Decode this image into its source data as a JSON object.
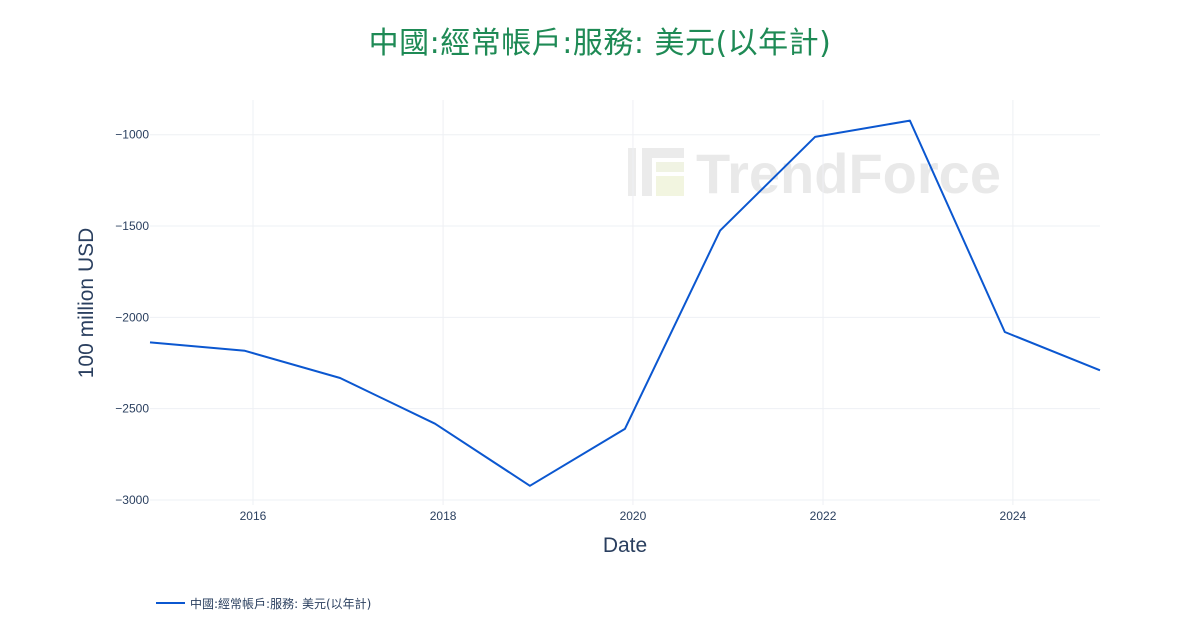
{
  "chart_data": {
    "type": "line",
    "title": "中國:經常帳戶:服務: 美元(以年計)",
    "xlabel": "Date",
    "ylabel": "100 million USD",
    "x": [
      "2014-12-01",
      "2015-12-01",
      "2016-12-01",
      "2017-12-01",
      "2018-12-01",
      "2019-12-01",
      "2020-12-01",
      "2021-12-01",
      "2022-12-01",
      "2023-12-01",
      "2024-12-01"
    ],
    "x_ticks": [
      "2016",
      "2018",
      "2020",
      "2022",
      "2024"
    ],
    "y_ticks": [
      -1000,
      -1500,
      -2000,
      -2500,
      -3000
    ],
    "y_tick_labels": [
      "−1000",
      "−1500",
      "−2000",
      "−2500",
      "−3000"
    ],
    "ylim": [
      -3000,
      -810
    ],
    "xlim": [
      "2014-12-01",
      "2024-12-01"
    ],
    "grid": true,
    "legend_position": "bottom-left",
    "series": [
      {
        "name": "中國:經常帳戶:服務: 美元(以年計)",
        "color": "#0b57d0",
        "values": [
          -2137,
          -2183,
          -2332,
          -2582,
          -2922,
          -2611,
          -1525,
          -1012,
          -923,
          -2080,
          -2290
        ]
      }
    ]
  },
  "watermark": {
    "text": "TrendForce"
  },
  "colors": {
    "title": "#1e8a55",
    "line": "#0b57d0",
    "grid": "#eef0f4",
    "text": "#2a3f5f"
  }
}
